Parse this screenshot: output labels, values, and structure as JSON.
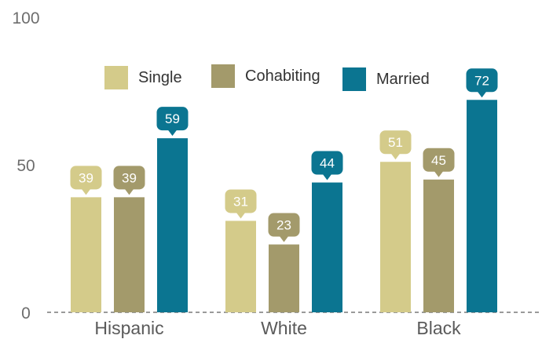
{
  "chart_data": {
    "type": "bar",
    "categories": [
      "Hispanic",
      "White",
      "Black"
    ],
    "series": [
      {
        "name": "Single",
        "color": "#d4cb8a",
        "values": [
          39,
          31,
          51
        ]
      },
      {
        "name": "Cohabiting",
        "color": "#a39a6b",
        "values": [
          39,
          23,
          45
        ]
      },
      {
        "name": "Married",
        "color": "#0b7591",
        "values": [
          59,
          44,
          72
        ]
      }
    ],
    "ylim": [
      0,
      100
    ],
    "yticks": [
      "0",
      "50",
      "100"
    ],
    "grid": false,
    "legend": "top",
    "data_labels": true
  }
}
